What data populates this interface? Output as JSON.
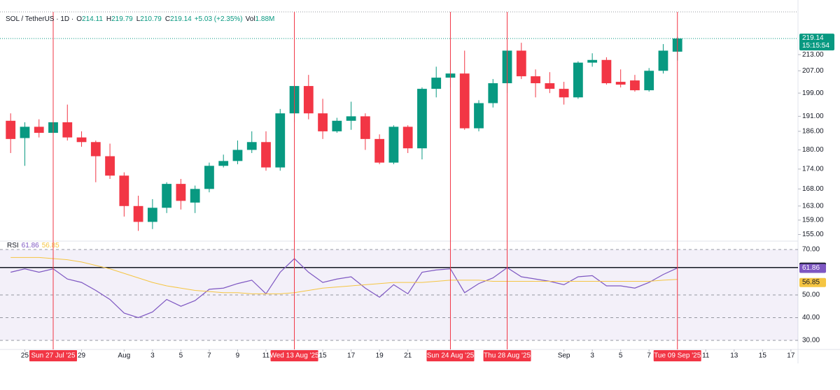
{
  "chart_data": [
    {
      "type": "candlestick",
      "title": "SOL / TetherUS · 1D ·",
      "ohlc_prefixes": [
        "O",
        "H",
        "L",
        "C"
      ],
      "change": "+5.03 (+2.35%)",
      "volume_label": "Vol",
      "volume": "1.88M",
      "countdown": "15:15:54",
      "x": [
        0,
        1,
        2,
        3,
        4,
        5,
        6,
        7,
        8,
        9,
        10,
        11,
        12,
        13,
        14,
        15,
        16,
        17,
        18,
        19,
        20,
        21,
        22,
        23,
        24,
        25,
        26,
        27,
        28,
        29,
        30,
        31,
        32,
        33,
        34,
        35,
        36,
        37,
        38,
        39,
        40,
        41,
        42,
        43,
        44,
        45,
        46,
        47
      ],
      "xlim": [
        -0.75,
        55.5
      ],
      "xticks": [
        {
          "value": 1,
          "label": "25"
        },
        {
          "value": 5,
          "label": "29"
        },
        {
          "value": 8,
          "label": "Aug"
        },
        {
          "value": 10,
          "label": "3"
        },
        {
          "value": 12,
          "label": "5"
        },
        {
          "value": 14,
          "label": "7"
        },
        {
          "value": 16,
          "label": "9"
        },
        {
          "value": 18,
          "label": "11"
        },
        {
          "value": 22,
          "label": "15"
        },
        {
          "value": 24,
          "label": "17"
        },
        {
          "value": 26,
          "label": "19"
        },
        {
          "value": 28,
          "label": "21"
        },
        {
          "value": 39,
          "label": "Sep"
        },
        {
          "value": 41,
          "label": "3"
        },
        {
          "value": 43,
          "label": "5"
        },
        {
          "value": 45,
          "label": "7"
        },
        {
          "value": 49,
          "label": "11"
        },
        {
          "value": 51,
          "label": "13"
        },
        {
          "value": 53,
          "label": "15"
        },
        {
          "value": 55,
          "label": "17"
        }
      ],
      "markers": [
        {
          "value": 3,
          "label": "Sun 27 Jul '25"
        },
        {
          "value": 20,
          "label": "Wed 13 Aug '25"
        },
        {
          "value": 31,
          "label": "Sun 24 Aug '25"
        },
        {
          "value": 35,
          "label": "Thu 28 Aug '25"
        },
        {
          "value": 47,
          "label": "Tue 09 Sep '25"
        }
      ],
      "open": [
        189.5,
        183.8,
        187.5,
        185.5,
        189,
        184,
        182.5,
        178,
        172,
        163,
        158.5,
        162.5,
        169.5,
        164,
        168,
        175,
        176.5,
        180,
        182.5,
        174.5,
        192,
        201.5,
        192,
        186,
        189.5,
        191,
        183.5,
        176,
        187.5,
        180.5,
        200.5,
        204.5,
        206,
        187,
        195.5,
        202.5,
        214.5,
        205,
        202.5,
        200.5,
        197.5,
        210,
        211,
        203,
        203.5,
        200,
        207,
        214.11
      ],
      "high": [
        192,
        189,
        190,
        190.5,
        195,
        186,
        183,
        182,
        173,
        166,
        165,
        170,
        171,
        169,
        176,
        178.5,
        183,
        186,
        186,
        193.5,
        202,
        205.5,
        197,
        190.5,
        196,
        192,
        185,
        188,
        188,
        201,
        208.5,
        211,
        214.5,
        196.5,
        204,
        215,
        217.5,
        207.5,
        206.5,
        203,
        210.5,
        213.5,
        212,
        207.5,
        205.5,
        208,
        217,
        219.79
      ],
      "low": [
        179,
        175,
        184,
        184,
        183,
        181,
        170,
        171,
        160,
        156,
        156.5,
        161,
        162,
        161,
        167,
        174.5,
        175.5,
        179,
        173.5,
        173.5,
        189,
        190,
        183.5,
        185.5,
        186.5,
        180,
        175.5,
        175.5,
        179,
        177,
        197.5,
        201,
        186.5,
        186,
        194,
        199,
        204,
        197.5,
        199,
        195,
        197,
        208.5,
        202,
        201,
        199.5,
        199.5,
        206,
        210.79
      ],
      "close": [
        183.5,
        187.5,
        185.5,
        189,
        184,
        182.5,
        178,
        172,
        163,
        158.5,
        162.5,
        169.5,
        164.5,
        168,
        175,
        176.5,
        180,
        182.5,
        174.5,
        192,
        201.5,
        192,
        186,
        189.5,
        191,
        183.5,
        176,
        187.5,
        180.5,
        200.5,
        204.5,
        206,
        187,
        195.5,
        202.5,
        214.5,
        205,
        202.5,
        200.5,
        197.5,
        210,
        211,
        202.5,
        202,
        200,
        207,
        214.5,
        219.14
      ],
      "up_color": "#089981",
      "down_color": "#f23645",
      "marker_color": "#f23645",
      "log_scale": true,
      "ylim": [
        153.2,
        229.7
      ],
      "yticks": [
        {
          "value": 155,
          "label": "155.00"
        },
        {
          "value": 159,
          "label": "159.00"
        },
        {
          "value": 163,
          "label": "163.00"
        },
        {
          "value": 168,
          "label": "168.00"
        },
        {
          "value": 174,
          "label": "174.00"
        },
        {
          "value": 180,
          "label": "180.00"
        },
        {
          "value": 186,
          "label": "186.00"
        },
        {
          "value": 191,
          "label": "191.00"
        },
        {
          "value": 199,
          "label": "199.00"
        },
        {
          "value": 207,
          "label": "207.00"
        },
        {
          "value": 213,
          "label": "213.00"
        }
      ]
    },
    {
      "type": "line",
      "title": "RSI",
      "ylim": [
        22.9,
        73.7
      ],
      "yticks": [
        {
          "value": 30,
          "label": "30.00"
        },
        {
          "value": 40,
          "label": "40.00"
        },
        {
          "value": 50,
          "label": "50.00"
        },
        {
          "value": 70,
          "label": "70.00"
        }
      ],
      "band": [
        30,
        70
      ],
      "hline": 62.06,
      "series": [
        {
          "color": "#7e57c2",
          "values": [
            60,
            61.5,
            60,
            61.5,
            57,
            55.5,
            52,
            48,
            42,
            40,
            42.5,
            48,
            45,
            47.5,
            52.5,
            53,
            55,
            56.5,
            50.5,
            60,
            66,
            60,
            55.5,
            57,
            58,
            53,
            49,
            54.5,
            50.5,
            60,
            61,
            61.5,
            51,
            55,
            57.5,
            62,
            58,
            57,
            56,
            54.5,
            58,
            58.5,
            54,
            54,
            53,
            55.5,
            59,
            61.86
          ]
        },
        {
          "color": "#f5c542",
          "values": [
            66.5,
            66.5,
            66.5,
            66,
            65.5,
            64.5,
            63,
            61.5,
            59.5,
            57.5,
            55.5,
            54,
            53,
            52,
            51.5,
            51,
            51,
            50.5,
            50.5,
            50.5,
            51,
            52,
            53,
            53.5,
            54,
            54.5,
            55,
            55.5,
            55.5,
            55.5,
            56,
            56.5,
            56.5,
            56.5,
            56,
            56,
            56,
            56,
            56,
            56,
            56,
            56,
            56,
            56,
            56,
            56,
            56.5,
            56.85
          ]
        }
      ]
    }
  ]
}
